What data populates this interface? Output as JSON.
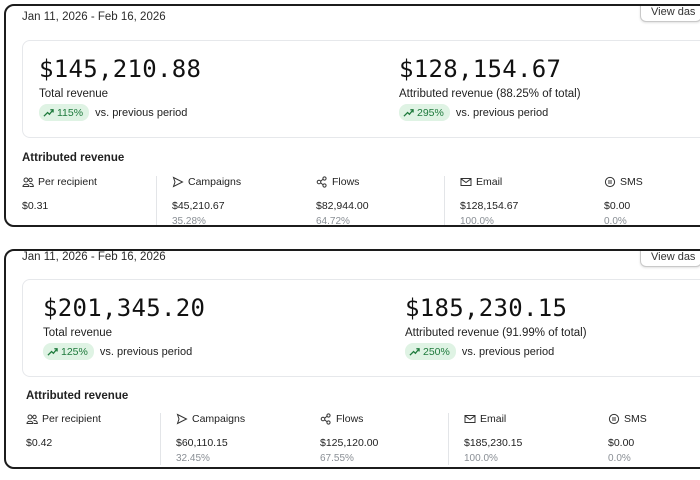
{
  "cards": [
    {
      "date_range": "Jan 11, 2026 - Feb 16, 2026",
      "view_button": "View das",
      "total": {
        "amount": "$145,210.88",
        "label": "Total revenue",
        "change": "115%",
        "vs": "vs. previous period"
      },
      "attributed": {
        "amount": "$128,154.67",
        "label": "Attributed revenue (88.25% of total)",
        "change": "295%",
        "vs": "vs. previous period"
      },
      "section_title": "Attributed revenue",
      "columns": [
        {
          "label": "Per recipient",
          "icon": "users-icon",
          "value": "$0.31",
          "percent": ""
        },
        {
          "label": "Campaigns",
          "icon": "send-icon",
          "value": "$45,210.67",
          "percent": "35.28%"
        },
        {
          "label": "Flows",
          "icon": "flows-icon",
          "value": "$82,944.00",
          "percent": "64.72%"
        },
        {
          "label": "Email",
          "icon": "mail-icon",
          "value": "$128,154.67",
          "percent": "100.0%"
        },
        {
          "label": "SMS",
          "icon": "sms-icon",
          "value": "$0.00",
          "percent": "0.0%"
        }
      ]
    },
    {
      "date_range": "Jan 11, 2026 - Feb 16, 2026",
      "view_button": "View das",
      "total": {
        "amount": "$201,345.20",
        "label": "Total revenue",
        "change": "125%",
        "vs": "vs. previous period"
      },
      "attributed": {
        "amount": "$185,230.15",
        "label": "Attributed revenue (91.99% of total)",
        "change": "250%",
        "vs": "vs. previous period"
      },
      "section_title": "Attributed revenue",
      "columns": [
        {
          "label": "Per recipient",
          "icon": "users-icon",
          "value": "$0.42",
          "percent": ""
        },
        {
          "label": "Campaigns",
          "icon": "send-icon",
          "value": "$60,110.15",
          "percent": "32.45%"
        },
        {
          "label": "Flows",
          "icon": "flows-icon",
          "value": "$125,120.00",
          "percent": "67.55%"
        },
        {
          "label": "Email",
          "icon": "mail-icon",
          "value": "$185,230.15",
          "percent": "100.0%"
        },
        {
          "label": "SMS",
          "icon": "sms-icon",
          "value": "$0.00",
          "percent": "0.0%"
        }
      ]
    }
  ],
  "colors": {
    "positive_bg": "#dff3e4",
    "positive_text": "#1e7a3c",
    "border": "#1c1c1c",
    "muted": "#8a8f95"
  }
}
